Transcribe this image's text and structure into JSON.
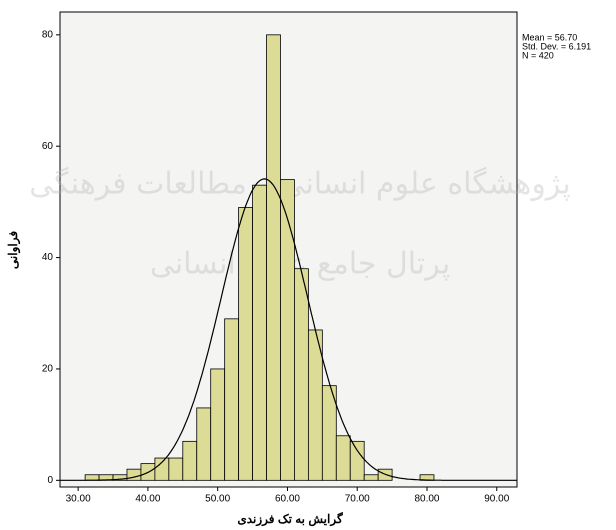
{
  "chart_data": {
    "type": "histogram",
    "x_label": "گرایش به تک فرزندی",
    "y_label": "فراوانی",
    "bins": [
      31,
      33,
      35,
      37,
      39,
      41,
      43,
      45,
      47,
      49,
      51,
      53,
      55,
      57,
      59,
      61,
      63,
      65,
      67,
      69,
      71,
      73,
      75,
      77,
      79,
      81
    ],
    "counts": [
      1,
      1,
      1,
      2,
      3,
      4,
      4,
      7,
      13,
      20,
      29,
      49,
      53,
      80,
      54,
      38,
      27,
      17,
      8,
      7,
      1,
      2,
      0,
      0,
      1
    ],
    "color": "#dcdc96",
    "stats": [
      {
        "value": 56.7,
        "label": "Mean = 56.70"
      },
      {
        "value": 6.191,
        "label": "Std. Dev. = 6.191"
      },
      {
        "value": 420,
        "label": "N = 420"
      }
    ],
    "xlim": [
      27.4,
      92.9
    ],
    "ylim": [
      -1.2,
      84.1
    ],
    "xticks": [
      {
        "value": 30,
        "label": "30.00"
      },
      {
        "value": 40,
        "label": "40.00"
      },
      {
        "value": 50,
        "label": "50.00"
      },
      {
        "value": 60,
        "label": "60.00"
      },
      {
        "value": 70,
        "label": "70.00"
      },
      {
        "value": 80,
        "label": "80.00"
      },
      {
        "value": 90,
        "label": "90.00"
      }
    ],
    "yticks": [
      0,
      20,
      40,
      60,
      80
    ],
    "watermark": [
      "پژوهشگاه علوم انسانی و مطالعات فرهنگی",
      "پرتال جامع علوم انسانی"
    ]
  }
}
